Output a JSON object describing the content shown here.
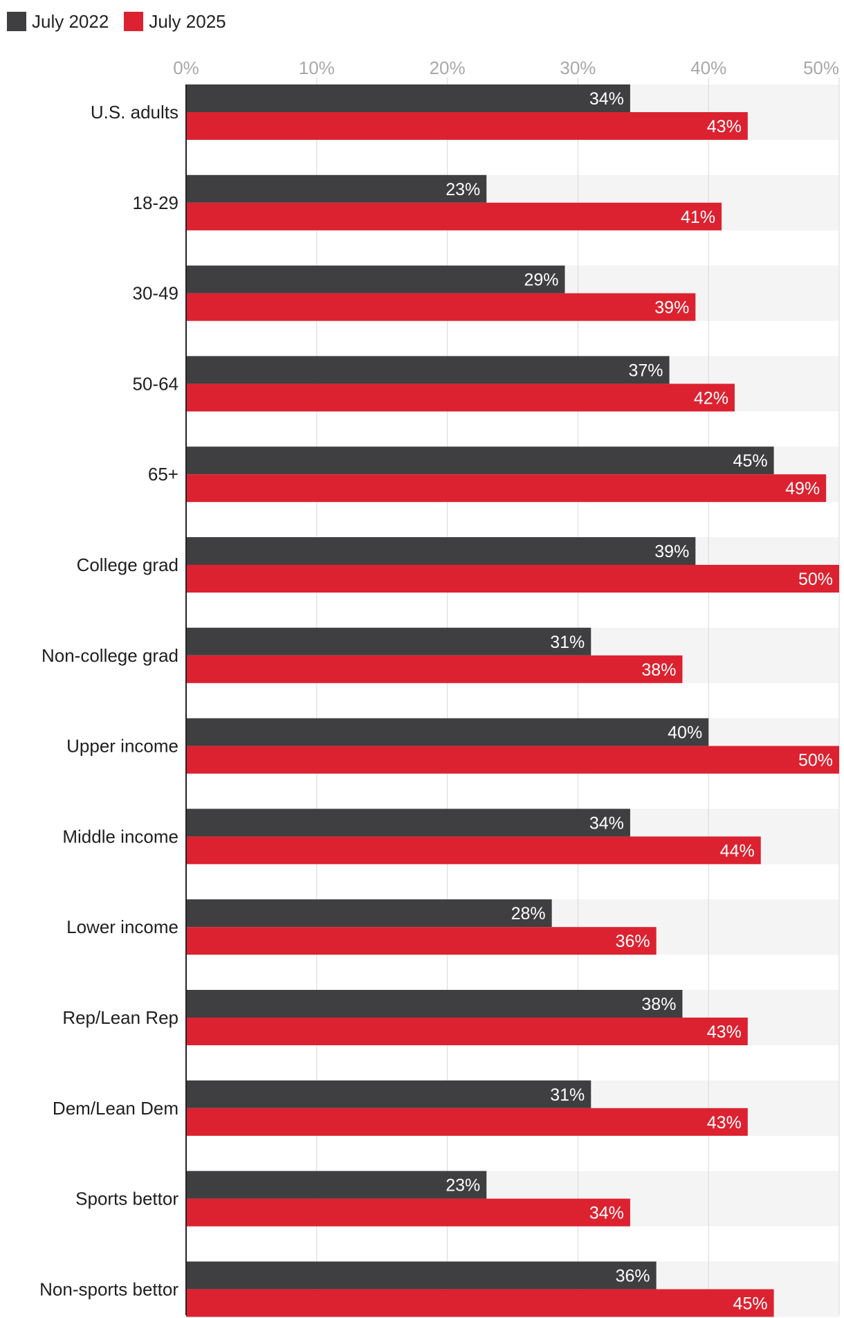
{
  "colors": {
    "series_2022": "#3f3f41",
    "series_2025": "#dc2230",
    "band": "#f4f4f4",
    "grid": "#d7d7d7",
    "tick": "#a8a8a8"
  },
  "legend": [
    {
      "label": "July 2022",
      "color": "#3f3f41"
    },
    {
      "label": "July 2025",
      "color": "#dc2230"
    }
  ],
  "chart_data": {
    "type": "bar",
    "orientation": "horizontal",
    "categories": [
      "U.S. adults",
      "18-29",
      "30-49",
      "50-64",
      "65+",
      "College grad",
      "Non-college grad",
      "Upper income",
      "Middle income",
      "Lower income",
      "Rep/Lean Rep",
      "Dem/Lean Dem",
      "Sports bettor",
      "Non-sports bettor"
    ],
    "series": [
      {
        "name": "July 2022",
        "values": [
          34,
          23,
          29,
          37,
          45,
          39,
          31,
          40,
          34,
          28,
          38,
          31,
          23,
          36
        ],
        "labels": [
          "34%",
          "23%",
          "29%",
          "37%",
          "45%",
          "39%",
          "31%",
          "40%",
          "34%",
          "28%",
          "38%",
          "31%",
          "23%",
          "36%"
        ]
      },
      {
        "name": "July 2025",
        "values": [
          43,
          41,
          39,
          42,
          49,
          50,
          38,
          50,
          44,
          36,
          43,
          43,
          34,
          45
        ],
        "labels": [
          "43%",
          "41%",
          "39%",
          "42%",
          "49%",
          "50%",
          "38%",
          "50%",
          "44%",
          "36%",
          "43%",
          "43%",
          "34%",
          "45%"
        ]
      }
    ],
    "xlim": [
      0,
      50
    ],
    "ticks": [
      0,
      10,
      20,
      30,
      40,
      50
    ],
    "tick_labels": [
      "0%",
      "10%",
      "20%",
      "30%",
      "40%",
      "50%"
    ],
    "title": "",
    "xlabel": "",
    "ylabel": "",
    "grid": true,
    "legend_position": "top-left"
  }
}
